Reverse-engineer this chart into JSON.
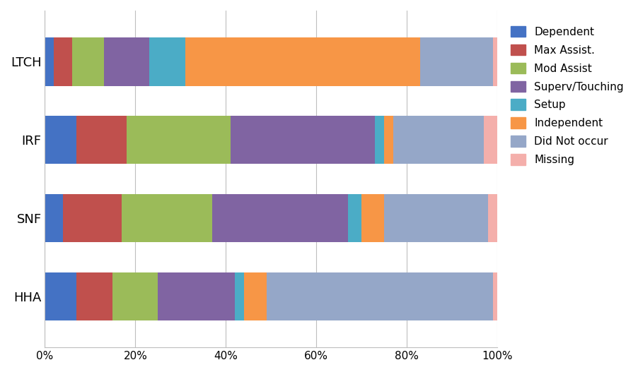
{
  "categories": [
    "HHA",
    "SNF",
    "IRF",
    "LTCH"
  ],
  "series": [
    {
      "label": "Dependent",
      "color": "#4472C4",
      "values": [
        7,
        4,
        7,
        2
      ]
    },
    {
      "label": "Max Assist.",
      "color": "#C0504D",
      "values": [
        8,
        13,
        11,
        4
      ]
    },
    {
      "label": "Mod Assist",
      "color": "#9BBB59",
      "values": [
        10,
        20,
        23,
        7
      ]
    },
    {
      "label": "Superv/Touching",
      "color": "#8064A2",
      "values": [
        17,
        30,
        32,
        10
      ]
    },
    {
      "label": "Setup",
      "color": "#4BACC6",
      "values": [
        2,
        3,
        2,
        8
      ]
    },
    {
      "label": "Independent",
      "color": "#F79646",
      "values": [
        5,
        5,
        2,
        52
      ]
    },
    {
      "label": "Did Not occur",
      "color": "#95A7C8",
      "values": [
        50,
        23,
        20,
        16
      ]
    },
    {
      "label": "Missing",
      "color": "#F4AFAB",
      "values": [
        1,
        2,
        3,
        1
      ]
    }
  ],
  "xlim": [
    0,
    100
  ],
  "xtick_labels": [
    "0%",
    "20%",
    "40%",
    "60%",
    "80%",
    "100%"
  ],
  "xtick_values": [
    0,
    20,
    40,
    60,
    80,
    100
  ],
  "background_color": "#FFFFFF",
  "grid_color": "#BEBEBE",
  "bar_height": 0.62,
  "figsize": [
    9.02,
    5.27
  ],
  "dpi": 100
}
